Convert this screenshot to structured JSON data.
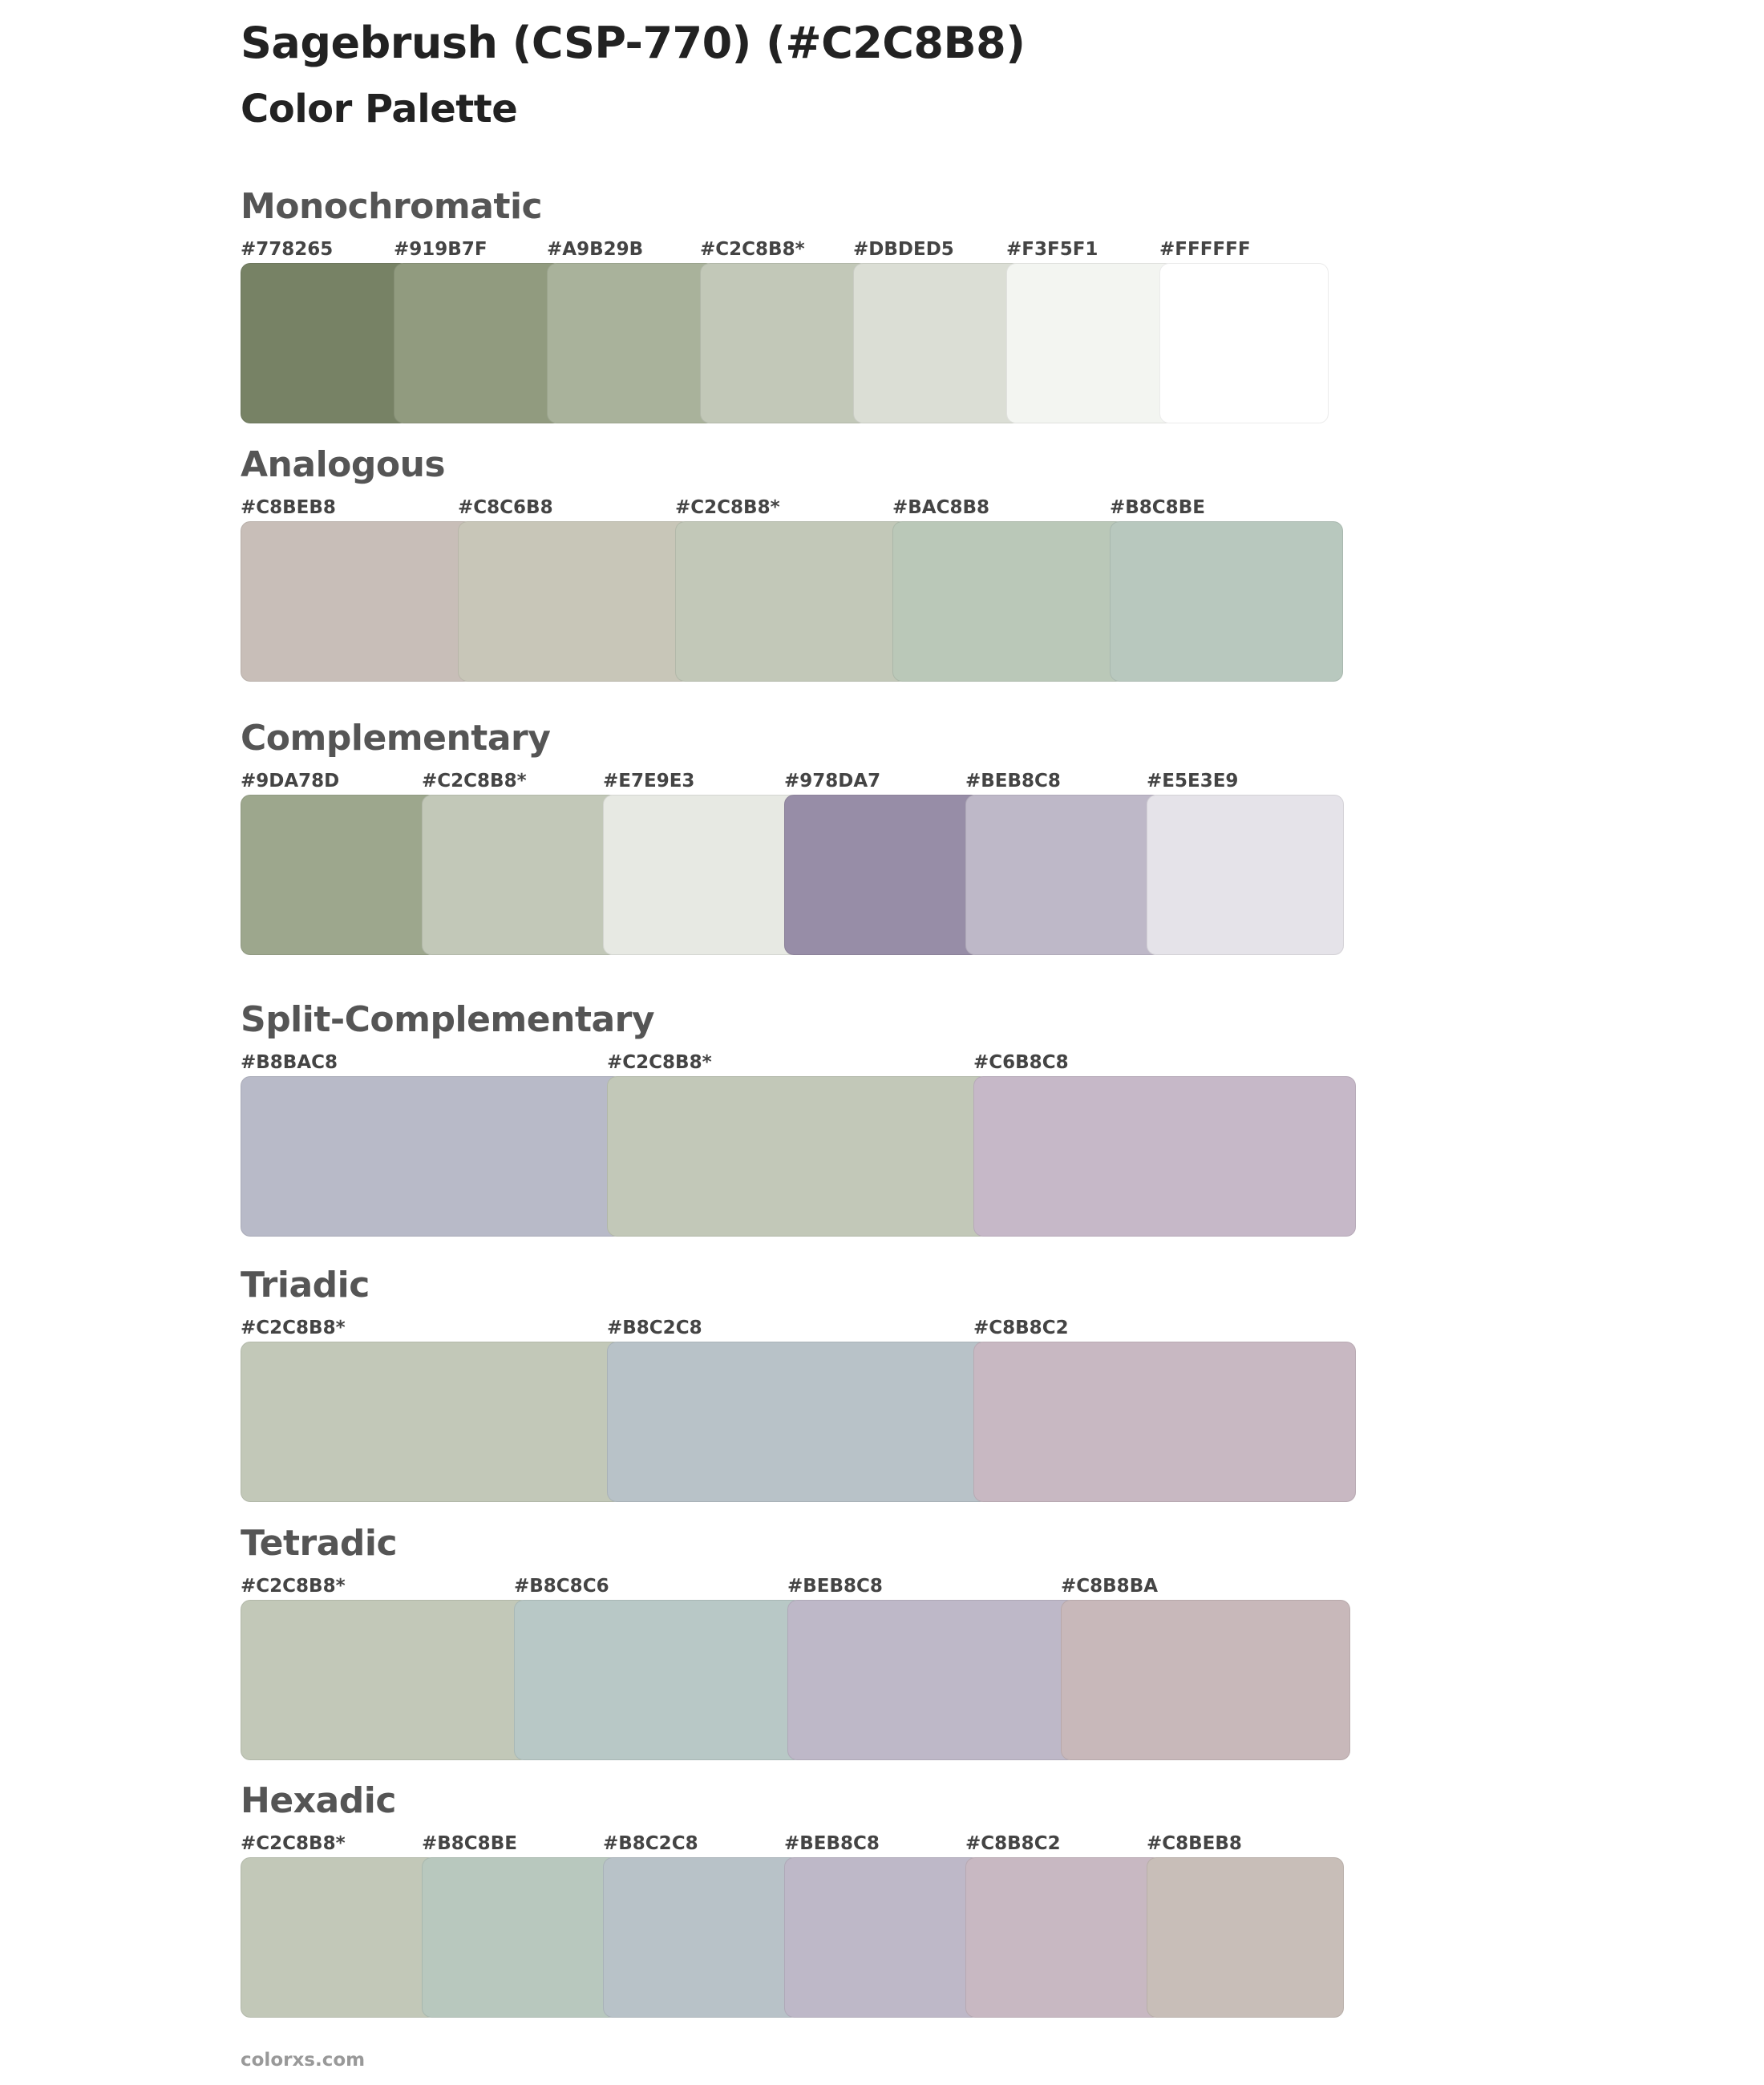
{
  "title": "Sagebrush (CSP-770) (#C2C8B8)",
  "subtitle": "Color Palette",
  "footer": "colorxs.com",
  "sections": [
    {
      "name": "Monochromatic",
      "colors": [
        {
          "label": "#778265",
          "hex": "#778265"
        },
        {
          "label": "#919B7F",
          "hex": "#919B7F"
        },
        {
          "label": "#A9B29B",
          "hex": "#A9B29B"
        },
        {
          "label": "#C2C8B8*",
          "hex": "#C2C8B8"
        },
        {
          "label": "#DBDED5",
          "hex": "#DBDED5"
        },
        {
          "label": "#F3F5F1",
          "hex": "#F3F5F1"
        },
        {
          "label": "#FFFFFF",
          "hex": "#FFFFFF"
        }
      ]
    },
    {
      "name": "Analogous",
      "colors": [
        {
          "label": "#C8BEB8",
          "hex": "#C8BEB8"
        },
        {
          "label": "#C8C6B8",
          "hex": "#C8C6B8"
        },
        {
          "label": "#C2C8B8*",
          "hex": "#C2C8B8"
        },
        {
          "label": "#BAC8B8",
          "hex": "#BAC8B8"
        },
        {
          "label": "#B8C8BE",
          "hex": "#B8C8BE"
        }
      ]
    },
    {
      "name": "Complementary",
      "colors": [
        {
          "label": "#9DA78D",
          "hex": "#9DA78D"
        },
        {
          "label": "#C2C8B8*",
          "hex": "#C2C8B8"
        },
        {
          "label": "#E7E9E3",
          "hex": "#E7E9E3"
        },
        {
          "label": "#978DA7",
          "hex": "#978DA7"
        },
        {
          "label": "#BEB8C8",
          "hex": "#BEB8C8"
        },
        {
          "label": "#E5E3E9",
          "hex": "#E5E3E9"
        }
      ]
    },
    {
      "name": "Split-Complementary",
      "colors": [
        {
          "label": "#B8BAC8",
          "hex": "#B8BAC8"
        },
        {
          "label": "#C2C8B8*",
          "hex": "#C2C8B8"
        },
        {
          "label": "#C6B8C8",
          "hex": "#C6B8C8"
        }
      ]
    },
    {
      "name": "Triadic",
      "colors": [
        {
          "label": "#C2C8B8*",
          "hex": "#C2C8B8"
        },
        {
          "label": "#B8C2C8",
          "hex": "#B8C2C8"
        },
        {
          "label": "#C8B8C2",
          "hex": "#C8B8C2"
        }
      ]
    },
    {
      "name": "Tetradic",
      "colors": [
        {
          "label": "#C2C8B8*",
          "hex": "#C2C8B8"
        },
        {
          "label": "#B8C8C6",
          "hex": "#B8C8C6"
        },
        {
          "label": "#BEB8C8",
          "hex": "#BEB8C8"
        },
        {
          "label": "#C8B8BA",
          "hex": "#C8B8BA"
        }
      ]
    },
    {
      "name": "Hexadic",
      "colors": [
        {
          "label": "#C2C8B8*",
          "hex": "#C2C8B8"
        },
        {
          "label": "#B8C8BE",
          "hex": "#B8C8BE"
        },
        {
          "label": "#B8C2C8",
          "hex": "#B8C2C8"
        },
        {
          "label": "#BEB8C8",
          "hex": "#BEB8C8"
        },
        {
          "label": "#C8B8C2",
          "hex": "#C8B8C2"
        },
        {
          "label": "#C8BEB8",
          "hex": "#C8BEB8"
        }
      ]
    }
  ]
}
